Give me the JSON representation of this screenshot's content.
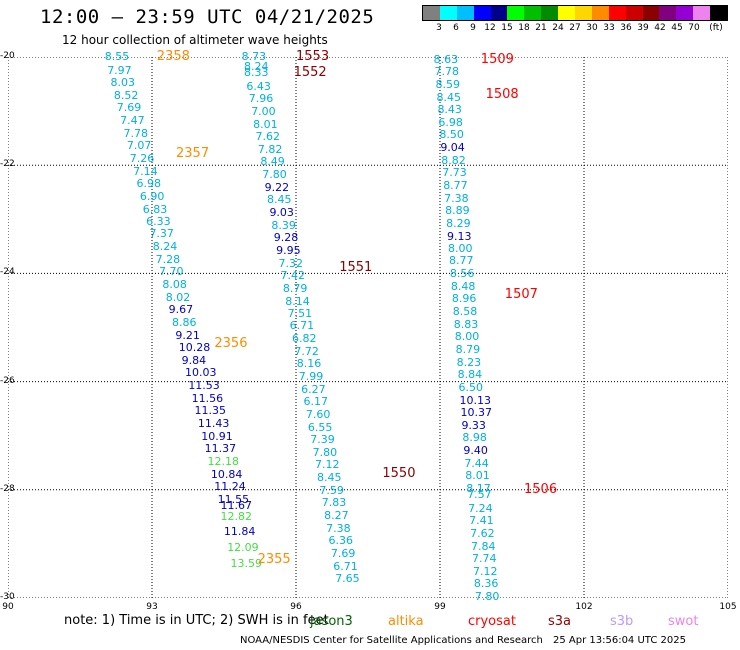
{
  "header": {
    "title": "12:00 – 23:59 UTC 04/21/2025",
    "subtitle": "12 hour collection of altimeter wave heights"
  },
  "legend": {
    "colors": [
      "#808080",
      "#00ffff",
      "#00bfff",
      "#0000ff",
      "#00008b",
      "#00ff00",
      "#00bf00",
      "#008b00",
      "#ffff00",
      "#ffd700",
      "#ff8c00",
      "#ff0000",
      "#cc0000",
      "#8b0000",
      "#800080",
      "#9400d3",
      "#ee82ee",
      "#000000"
    ],
    "labels": [
      "3",
      "6",
      "9",
      "12",
      "15",
      "18",
      "21",
      "24",
      "27",
      "30",
      "33",
      "36",
      "39",
      "42",
      "45",
      "70",
      "(ft)"
    ]
  },
  "footer": {
    "note": "note: 1) Time is in UTC; 2) SWH is in feet",
    "satellites": [
      {
        "name": "jason3",
        "color": "#006400"
      },
      {
        "name": "altika",
        "color": "#ff8c00"
      },
      {
        "name": "cryosat",
        "color": "#ff0000"
      },
      {
        "name": "s3a",
        "color": "#8b0000"
      },
      {
        "name": "s3b",
        "color": "#bb99ff"
      },
      {
        "name": "swot",
        "color": "#ee82ee"
      }
    ],
    "credit": "NOAA/NESDIS Center for Satellite Applications and Research",
    "timestamp": "25 Apr 13:56:04 UTC 2025"
  },
  "chart_data": {
    "type": "scatter",
    "title": "12:00 – 23:59 UTC 04/21/2025",
    "subtitle": "12 hour collection of altimeter wave heights",
    "xlim": [
      90,
      105
    ],
    "ylim": [
      -30,
      -20
    ],
    "x_ticks": [
      "90",
      "93",
      "96",
      "99",
      "102",
      "105"
    ],
    "y_ticks": [
      "-20",
      "-22",
      "-24",
      "-26",
      "-28",
      "-30"
    ],
    "grid": true,
    "units": "ft",
    "series": [
      {
        "name": "altika",
        "pass_labels": [
          {
            "text": "2358",
            "x": 93.1,
            "y": -20.0
          },
          {
            "text": "2357",
            "x": 93.5,
            "y": -21.8
          },
          {
            "text": "2356",
            "x": 94.3,
            "y": -25.3
          },
          {
            "text": "2355",
            "x": 95.2,
            "y": -29.3
          }
        ],
        "points": [
          {
            "x": 92.35,
            "y": -20.0,
            "swh": 8.55
          },
          {
            "x": 92.4,
            "y": -20.25,
            "swh": 7.97
          },
          {
            "x": 92.47,
            "y": -20.48,
            "swh": 8.03
          },
          {
            "x": 92.54,
            "y": -20.72,
            "swh": 8.52
          },
          {
            "x": 92.6,
            "y": -20.95,
            "swh": 7.69
          },
          {
            "x": 92.67,
            "y": -21.18,
            "swh": 7.47
          },
          {
            "x": 92.74,
            "y": -21.42,
            "swh": 7.78
          },
          {
            "x": 92.81,
            "y": -21.65,
            "swh": 7.07
          },
          {
            "x": 92.87,
            "y": -21.88,
            "swh": 7.26
          },
          {
            "x": 92.94,
            "y": -22.12,
            "swh": 7.14
          },
          {
            "x": 93.01,
            "y": -22.35,
            "swh": 6.98
          },
          {
            "x": 93.08,
            "y": -22.58,
            "swh": 6.9
          },
          {
            "x": 93.14,
            "y": -22.82,
            "swh": 6.83
          },
          {
            "x": 93.21,
            "y": -23.05,
            "swh": 6.33
          },
          {
            "x": 93.28,
            "y": -23.28,
            "swh": 7.37
          },
          {
            "x": 93.35,
            "y": -23.52,
            "swh": 8.24
          },
          {
            "x": 93.41,
            "y": -23.75,
            "swh": 7.28
          },
          {
            "x": 93.48,
            "y": -23.98,
            "swh": 7.7
          },
          {
            "x": 93.55,
            "y": -24.22,
            "swh": 8.08
          },
          {
            "x": 93.62,
            "y": -24.45,
            "swh": 8.02
          },
          {
            "x": 93.68,
            "y": -24.68,
            "swh": 9.67
          },
          {
            "x": 93.75,
            "y": -24.92,
            "swh": 8.86
          },
          {
            "x": 93.82,
            "y": -25.15,
            "swh": 9.21
          },
          {
            "x": 93.89,
            "y": -25.38,
            "swh": 10.28
          },
          {
            "x": 93.95,
            "y": -25.62,
            "swh": 9.84
          },
          {
            "x": 94.02,
            "y": -25.85,
            "swh": 10.03
          },
          {
            "x": 94.09,
            "y": -26.08,
            "swh": 11.53
          },
          {
            "x": 94.16,
            "y": -26.32,
            "swh": 11.56
          },
          {
            "x": 94.22,
            "y": -26.55,
            "swh": 11.35
          },
          {
            "x": 94.29,
            "y": -26.78,
            "swh": 11.43
          },
          {
            "x": 94.36,
            "y": -27.02,
            "swh": 10.91
          },
          {
            "x": 94.43,
            "y": -27.25,
            "swh": 11.37
          },
          {
            "x": 94.49,
            "y": -27.48,
            "swh": 12.18
          },
          {
            "x": 94.56,
            "y": -27.72,
            "swh": 10.84
          },
          {
            "x": 94.63,
            "y": -27.95,
            "swh": 11.24
          },
          {
            "x": 94.7,
            "y": -28.18,
            "swh": 11.55
          },
          {
            "x": 94.76,
            "y": -28.3,
            "swh": 11.67
          },
          {
            "x": 94.76,
            "y": -28.5,
            "swh": 12.82
          },
          {
            "x": 94.83,
            "y": -28.78,
            "swh": 11.84
          },
          {
            "x": 94.9,
            "y": -29.08,
            "swh": 12.09
          },
          {
            "x": 94.97,
            "y": -29.38,
            "swh": 13.59
          }
        ]
      },
      {
        "name": "s3a",
        "pass_labels": [
          {
            "text": "1553",
            "x": 96.0,
            "y": -20.0
          },
          {
            "text": "1552",
            "x": 95.95,
            "y": -20.3
          },
          {
            "text": "1551",
            "x": 96.9,
            "y": -23.9
          },
          {
            "text": "1550",
            "x": 97.8,
            "y": -27.7
          }
        ],
        "points": [
          {
            "x": 95.2,
            "y": -20.0,
            "swh": 8.73
          },
          {
            "x": 95.25,
            "y": -20.18,
            "swh": 8.24
          },
          {
            "x": 95.25,
            "y": -20.3,
            "swh": 8.33
          },
          {
            "x": 95.3,
            "y": -20.55,
            "swh": 6.43
          },
          {
            "x": 95.35,
            "y": -20.78,
            "swh": 7.96
          },
          {
            "x": 95.4,
            "y": -21.02,
            "swh": 7.0
          },
          {
            "x": 95.44,
            "y": -21.25,
            "swh": 8.01
          },
          {
            "x": 95.49,
            "y": -21.48,
            "swh": 7.62
          },
          {
            "x": 95.54,
            "y": -21.72,
            "swh": 7.82
          },
          {
            "x": 95.59,
            "y": -21.95,
            "swh": 8.49
          },
          {
            "x": 95.63,
            "y": -22.18,
            "swh": 7.8
          },
          {
            "x": 95.68,
            "y": -22.42,
            "swh": 9.22
          },
          {
            "x": 95.73,
            "y": -22.65,
            "swh": 8.45
          },
          {
            "x": 95.78,
            "y": -22.88,
            "swh": 9.03
          },
          {
            "x": 95.82,
            "y": -23.12,
            "swh": 8.39
          },
          {
            "x": 95.87,
            "y": -23.35,
            "swh": 9.28
          },
          {
            "x": 95.92,
            "y": -23.58,
            "swh": 9.95
          },
          {
            "x": 95.97,
            "y": -23.82,
            "swh": 7.32
          },
          {
            "x": 96.01,
            "y": -24.05,
            "swh": 7.42
          },
          {
            "x": 96.06,
            "y": -24.28,
            "swh": 8.79
          },
          {
            "x": 96.11,
            "y": -24.52,
            "swh": 8.14
          },
          {
            "x": 96.16,
            "y": -24.75,
            "swh": 7.51
          },
          {
            "x": 96.2,
            "y": -24.98,
            "swh": 6.71
          },
          {
            "x": 96.25,
            "y": -25.22,
            "swh": 6.82
          },
          {
            "x": 96.3,
            "y": -25.45,
            "swh": 7.72
          },
          {
            "x": 96.35,
            "y": -25.68,
            "swh": 8.16
          },
          {
            "x": 96.39,
            "y": -25.92,
            "swh": 7.99
          },
          {
            "x": 96.44,
            "y": -26.15,
            "swh": 6.27
          },
          {
            "x": 96.49,
            "y": -26.38,
            "swh": 6.17
          },
          {
            "x": 96.54,
            "y": -26.62,
            "swh": 7.6
          },
          {
            "x": 96.58,
            "y": -26.85,
            "swh": 6.55
          },
          {
            "x": 96.63,
            "y": -27.08,
            "swh": 7.39
          },
          {
            "x": 96.68,
            "y": -27.32,
            "swh": 7.8
          },
          {
            "x": 96.73,
            "y": -27.55,
            "swh": 7.12
          },
          {
            "x": 96.77,
            "y": -27.78,
            "swh": 8.45
          },
          {
            "x": 96.82,
            "y": -28.02,
            "swh": 7.59
          },
          {
            "x": 96.87,
            "y": -28.25,
            "swh": 7.83
          },
          {
            "x": 96.92,
            "y": -28.48,
            "swh": 8.27
          },
          {
            "x": 96.96,
            "y": -28.72,
            "swh": 7.38
          },
          {
            "x": 97.01,
            "y": -28.95,
            "swh": 6.36
          },
          {
            "x": 97.06,
            "y": -29.18,
            "swh": 7.69
          },
          {
            "x": 97.11,
            "y": -29.42,
            "swh": 6.71
          },
          {
            "x": 97.15,
            "y": -29.65,
            "swh": 7.65
          }
        ]
      },
      {
        "name": "cryosat",
        "pass_labels": [
          {
            "text": "1509",
            "x": 99.85,
            "y": -20.05
          },
          {
            "text": "1508",
            "x": 99.95,
            "y": -20.7
          },
          {
            "text": "1507",
            "x": 100.35,
            "y": -24.4
          },
          {
            "text": "1506",
            "x": 100.75,
            "y": -28.0
          }
        ],
        "points": [
          {
            "x": 99.2,
            "y": -20.05,
            "swh": 8.63
          },
          {
            "x": 99.22,
            "y": -20.28,
            "swh": 7.78
          },
          {
            "x": 99.24,
            "y": -20.52,
            "swh": 8.59
          },
          {
            "x": 99.26,
            "y": -20.75,
            "swh": 8.45
          },
          {
            "x": 99.28,
            "y": -20.98,
            "swh": 8.43
          },
          {
            "x": 99.3,
            "y": -21.22,
            "swh": 6.98
          },
          {
            "x": 99.32,
            "y": -21.45,
            "swh": 8.5
          },
          {
            "x": 99.34,
            "y": -21.68,
            "swh": 9.04
          },
          {
            "x": 99.36,
            "y": -21.92,
            "swh": 8.82
          },
          {
            "x": 99.38,
            "y": -22.15,
            "swh": 7.73
          },
          {
            "x": 99.4,
            "y": -22.38,
            "swh": 8.77
          },
          {
            "x": 99.42,
            "y": -22.62,
            "swh": 7.38
          },
          {
            "x": 99.44,
            "y": -22.85,
            "swh": 8.89
          },
          {
            "x": 99.46,
            "y": -23.08,
            "swh": 8.29
          },
          {
            "x": 99.48,
            "y": -23.32,
            "swh": 9.13
          },
          {
            "x": 99.5,
            "y": -23.55,
            "swh": 8.0
          },
          {
            "x": 99.52,
            "y": -23.78,
            "swh": 8.77
          },
          {
            "x": 99.54,
            "y": -24.02,
            "swh": 8.56
          },
          {
            "x": 99.56,
            "y": -24.25,
            "swh": 8.48
          },
          {
            "x": 99.58,
            "y": -24.48,
            "swh": 8.96
          },
          {
            "x": 99.6,
            "y": -24.72,
            "swh": 8.58
          },
          {
            "x": 99.62,
            "y": -24.95,
            "swh": 8.83
          },
          {
            "x": 99.64,
            "y": -25.18,
            "swh": 8.0
          },
          {
            "x": 99.66,
            "y": -25.42,
            "swh": 8.79
          },
          {
            "x": 99.68,
            "y": -25.65,
            "swh": 8.23
          },
          {
            "x": 99.7,
            "y": -25.88,
            "swh": 8.84
          },
          {
            "x": 99.72,
            "y": -26.12,
            "swh": 6.5
          },
          {
            "x": 99.74,
            "y": -26.35,
            "swh": 10.13
          },
          {
            "x": 99.76,
            "y": -26.58,
            "swh": 10.37
          },
          {
            "x": 99.78,
            "y": -26.82,
            "swh": 9.33
          },
          {
            "x": 99.8,
            "y": -27.05,
            "swh": 8.98
          },
          {
            "x": 99.82,
            "y": -27.28,
            "swh": 9.4
          },
          {
            "x": 99.84,
            "y": -27.52,
            "swh": 7.44
          },
          {
            "x": 99.86,
            "y": -27.75,
            "swh": 8.01
          },
          {
            "x": 99.88,
            "y": -27.98,
            "swh": 8.17
          },
          {
            "x": 99.9,
            "y": -28.1,
            "swh": 7.57
          },
          {
            "x": 99.92,
            "y": -28.35,
            "swh": 7.24
          },
          {
            "x": 99.94,
            "y": -28.58,
            "swh": 7.41
          },
          {
            "x": 99.96,
            "y": -28.82,
            "swh": 7.62
          },
          {
            "x": 99.98,
            "y": -29.05,
            "swh": 7.84
          },
          {
            "x": 100.0,
            "y": -29.28,
            "swh": 7.74
          },
          {
            "x": 100.02,
            "y": -29.52,
            "swh": 7.12
          },
          {
            "x": 100.04,
            "y": -29.75,
            "swh": 8.36
          },
          {
            "x": 100.06,
            "y": -29.98,
            "swh": 7.8
          }
        ]
      }
    ]
  }
}
